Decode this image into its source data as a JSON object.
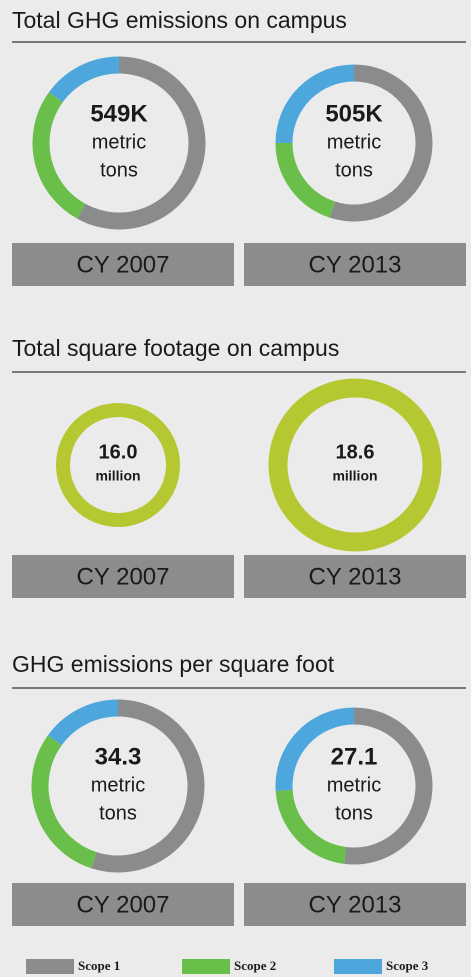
{
  "chart_data": [
    {
      "type": "donut",
      "title": "Total GHG emissions on campus",
      "series": [
        {
          "name": "Scope 1",
          "color": "#8a8b8d"
        },
        {
          "name": "Scope 2",
          "color": "#6abf4b"
        },
        {
          "name": "Scope 3",
          "color": "#4da6dc"
        }
      ],
      "panels": [
        {
          "center": [
            "549K",
            "metric",
            "tons"
          ],
          "caption": "CY 2007",
          "values": [
            58,
            27,
            15
          ]
        },
        {
          "center": [
            "505K",
            "metric",
            "tons"
          ],
          "caption": "CY 2013",
          "values": [
            55,
            20,
            25
          ]
        }
      ]
    },
    {
      "type": "ring",
      "title": "Total square footage on campus",
      "color": "#b5c832",
      "panels": [
        {
          "center": [
            "16.0",
            "million"
          ],
          "caption": "CY 2007",
          "values": [
            16.0
          ]
        },
        {
          "center": [
            "18.6",
            "million"
          ],
          "caption": "CY 2013",
          "values": [
            18.6
          ]
        }
      ]
    },
    {
      "type": "donut",
      "title": "GHG emissions per square foot",
      "series": [
        {
          "name": "Scope 1",
          "color": "#8a8b8d"
        },
        {
          "name": "Scope 2",
          "color": "#6abf4b"
        },
        {
          "name": "Scope 3",
          "color": "#4da6dc"
        }
      ],
      "panels": [
        {
          "center": [
            "34.3",
            "metric",
            "tons"
          ],
          "caption": "CY 2007",
          "values": [
            55,
            30,
            15
          ]
        },
        {
          "center": [
            "27.1",
            "metric",
            "tons"
          ],
          "caption": "CY 2013",
          "values": [
            52,
            22,
            26
          ]
        }
      ]
    }
  ],
  "legend": [
    {
      "name": "Scope 1",
      "color": "#8a8b8d"
    },
    {
      "name": "Scope 2",
      "color": "#6abf4b"
    },
    {
      "name": "Scope 3",
      "color": "#4da6dc"
    }
  ]
}
